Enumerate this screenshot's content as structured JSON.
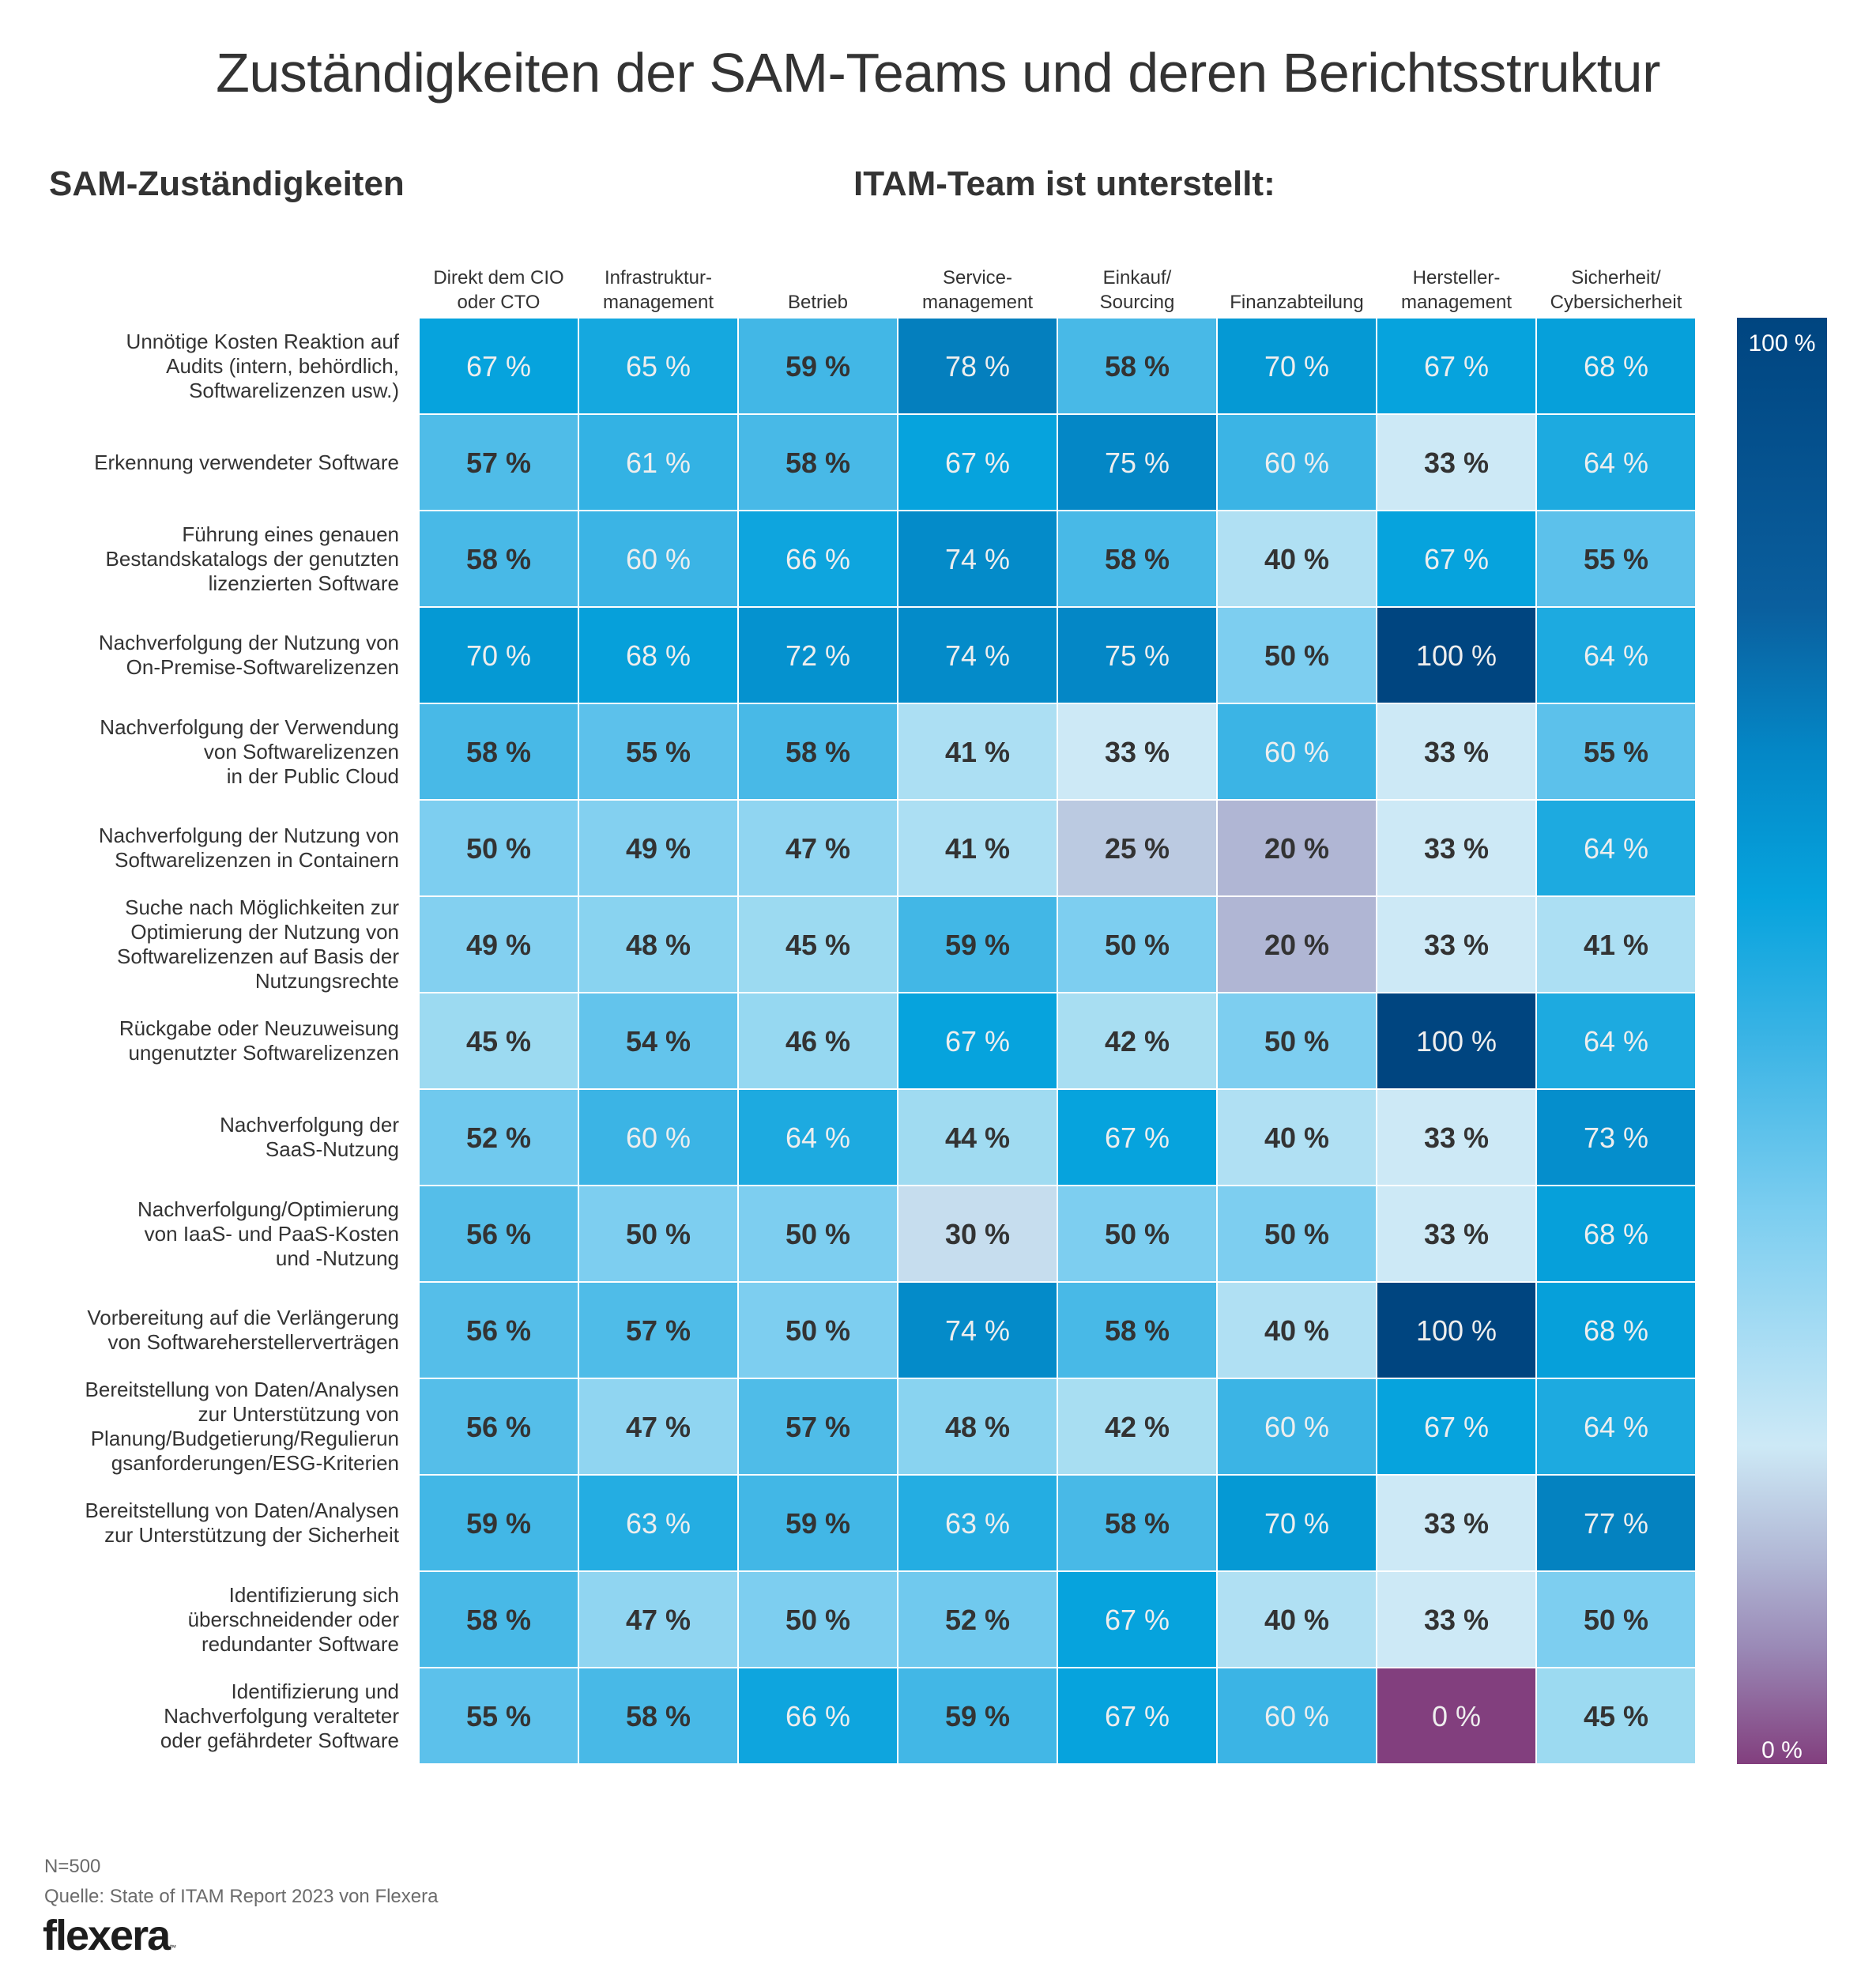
{
  "chart_data": {
    "type": "heatmap",
    "title": "Zuständigkeiten der SAM-Teams und deren Berichtsstruktur",
    "row_axis_title": "SAM-Zuständigkeiten",
    "column_axis_title": "ITAM-Team ist unterstellt:",
    "columns": [
      "Direkt dem CIO\noder CTO",
      "Infrastruktur-\nmanagement",
      "Betrieb",
      "Service-\nmanagement",
      "Einkauf/\nSourcing",
      "Finanzabteilung",
      "Hersteller-\nmanagement",
      "Sicherheit/\nCybersicherheit"
    ],
    "rows": [
      "Unnötige Kosten Reaktion auf\nAudits (intern, behördlich,\nSoftwarelizenzen usw.)",
      "Erkennung verwendeter Software",
      "Führung eines genauen\nBestandskatalogs der genutzten\nlizenzierten Software",
      "Nachverfolgung der Nutzung von\nOn-Premise-Softwarelizenzen",
      "Nachverfolgung der Verwendung\nvon Softwarelizenzen\nin der Public Cloud",
      "Nachverfolgung der Nutzung von\nSoftwarelizenzen in Containern",
      "Suche nach Möglichkeiten zur\nOptimierung der Nutzung von\nSoftwarelizenzen auf Basis der\nNutzungsrechte",
      "Rückgabe oder Neuzuweisung\nungenutzter Softwarelizenzen",
      "Nachverfolgung der\nSaaS-Nutzung",
      "Nachverfolgung/Optimierung\nvon IaaS- und PaaS-Kosten\nund -Nutzung",
      "Vorbereitung auf die Verlängerung\nvon Softwareherstellerverträgen",
      "Bereitstellung von Daten/Analysen\nzur Unterstützung von\nPlanung/Budgetierung/Regulierun\ngsanforderungen/ESG-Kriterien",
      "Bereitstellung von Daten/Analysen\nzur Unterstützung der Sicherheit",
      "Identifizierung sich\nüberschneidender oder\nredundanter Software",
      "Identifizierung und\nNachverfolgung veralteter\noder gefährdeter Software"
    ],
    "values": [
      [
        67,
        65,
        59,
        78,
        58,
        70,
        67,
        68
      ],
      [
        57,
        61,
        58,
        67,
        75,
        60,
        33,
        64
      ],
      [
        58,
        60,
        66,
        74,
        58,
        40,
        67,
        55
      ],
      [
        70,
        68,
        72,
        74,
        75,
        50,
        100,
        64
      ],
      [
        58,
        55,
        58,
        41,
        33,
        60,
        33,
        55
      ],
      [
        50,
        49,
        47,
        41,
        25,
        20,
        33,
        64
      ],
      [
        49,
        48,
        45,
        59,
        50,
        20,
        33,
        41
      ],
      [
        45,
        54,
        46,
        67,
        42,
        50,
        100,
        64
      ],
      [
        52,
        60,
        64,
        44,
        67,
        40,
        33,
        73
      ],
      [
        56,
        50,
        50,
        30,
        50,
        50,
        33,
        68
      ],
      [
        56,
        57,
        50,
        74,
        58,
        40,
        100,
        68
      ],
      [
        56,
        47,
        57,
        48,
        42,
        60,
        67,
        64
      ],
      [
        59,
        63,
        59,
        63,
        58,
        70,
        33,
        77
      ],
      [
        58,
        47,
        50,
        52,
        67,
        40,
        33,
        50
      ],
      [
        55,
        58,
        66,
        59,
        67,
        60,
        0,
        45
      ]
    ],
    "value_unit": "%",
    "color_scale": {
      "min": 0,
      "max": 100,
      "min_label": "0 %",
      "max_label": "100 %",
      "stops": [
        {
          "value": 0,
          "color": "#823f7e"
        },
        {
          "value": 20,
          "color": "#b0b6d4"
        },
        {
          "value": 33,
          "color": "#cde9f6"
        },
        {
          "value": 45,
          "color": "#9cdaf1"
        },
        {
          "value": 50,
          "color": "#7dcef0"
        },
        {
          "value": 60,
          "color": "#3bb4e5"
        },
        {
          "value": 67,
          "color": "#06a3dd"
        },
        {
          "value": 75,
          "color": "#0487c6"
        },
        {
          "value": 100,
          "color": "#004580"
        }
      ],
      "legend_position": "right"
    },
    "label_colors": {
      "dark": "#333333",
      "light": "#eeeeee"
    }
  },
  "footer": {
    "sample_size": "N=500",
    "source": "Quelle: State of ITAM Report 2023 von Flexera",
    "logo_text": "flexera",
    "logo_tm": "™"
  }
}
